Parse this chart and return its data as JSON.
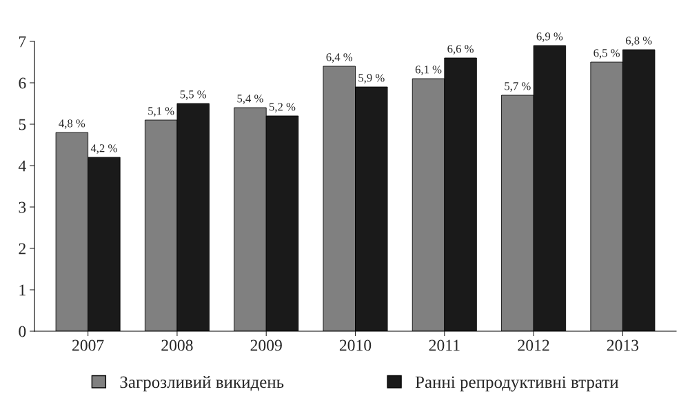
{
  "chart_data": {
    "type": "bar",
    "categories": [
      "2007",
      "2008",
      "2009",
      "2010",
      "2011",
      "2012",
      "2013"
    ],
    "series": [
      {
        "name": "Загрозливий викидень",
        "color": "#808080",
        "values": [
          4.8,
          5.1,
          5.4,
          6.4,
          6.1,
          5.7,
          6.5
        ],
        "value_labels": [
          "4,8 %",
          "5,1 %",
          "5,4 %",
          "6,4 %",
          "6,1 %",
          "5,7 %",
          "6,5 %"
        ]
      },
      {
        "name": "Ранні репродуктивні втрати",
        "color": "#1a1a1a",
        "values": [
          4.2,
          5.5,
          5.2,
          5.9,
          6.6,
          6.9,
          6.8
        ],
        "value_labels": [
          "4,2 %",
          "5,5 %",
          "5,2 %",
          "5,9 %",
          "6,6 %",
          "6,9 %",
          "6,8 %"
        ]
      }
    ],
    "ylim": [
      0,
      7
    ],
    "yticks": [
      0,
      1,
      2,
      3,
      4,
      5,
      6,
      7
    ],
    "grid": false,
    "legend": "bottom"
  }
}
